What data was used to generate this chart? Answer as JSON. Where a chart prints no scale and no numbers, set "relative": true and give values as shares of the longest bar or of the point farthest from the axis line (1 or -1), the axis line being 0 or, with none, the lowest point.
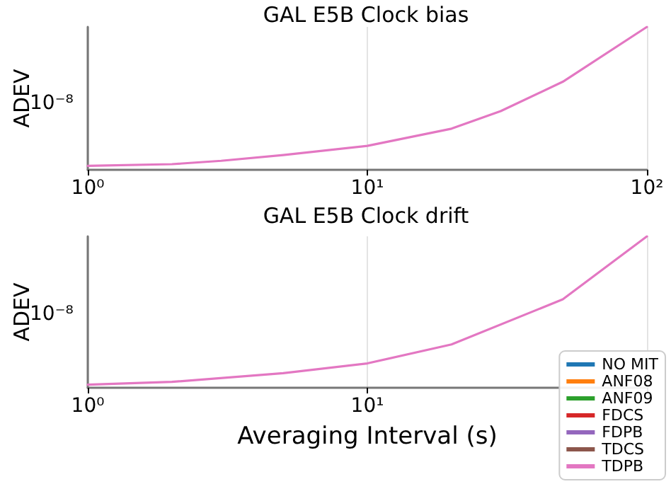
{
  "chart_data": [
    {
      "type": "line",
      "title": "GAL E5B Clock bias",
      "ylabel": "ADEV",
      "log": "x",
      "grid": "x",
      "legend": false,
      "relative": true,
      "annotations": [
        "10⁻⁸"
      ],
      "x": [
        1,
        2,
        3,
        5,
        10,
        20,
        30,
        50,
        100
      ],
      "xlim": [
        1,
        100
      ],
      "xticks": [
        {
          "value": 1,
          "label": "10⁰"
        },
        {
          "value": 10,
          "label": "10¹"
        },
        {
          "value": 100,
          "label": "10²"
        }
      ],
      "series": [
        {
          "color": "#e377c2",
          "values": [
            0.0274,
            0.0397,
            0.063,
            0.103,
            0.168,
            0.288,
            0.411,
            0.616,
            1
          ]
        }
      ]
    },
    {
      "type": "line",
      "title": "GAL E5B Clock drift",
      "xlabel": "Averaging Interval (s)",
      "ylabel": "ADEV",
      "log": "x",
      "grid": "x",
      "legend": "bottom right",
      "relative": true,
      "annotations": [
        "10⁻⁸"
      ],
      "x": [
        1,
        2,
        5,
        10,
        20,
        50,
        100
      ],
      "xlim": [
        1,
        100
      ],
      "xticks": [
        {
          "value": 1,
          "label": "10⁰"
        },
        {
          "value": 10,
          "label": "10¹"
        },
        {
          "value": 100,
          "label": null
        }
      ],
      "series": [
        {
          "name": "NO MIT",
          "color": "#1f77b4",
          "values": [
            null,
            null,
            null,
            null,
            null,
            null,
            null
          ]
        },
        {
          "name": "ANF08",
          "color": "#ff7f0e",
          "values": [
            null,
            null,
            null,
            null,
            null,
            null,
            null
          ]
        },
        {
          "name": "ANF09",
          "color": "#2ca02c",
          "values": [
            null,
            null,
            null,
            null,
            null,
            null,
            null
          ]
        },
        {
          "name": "FDCS",
          "color": "#d62728",
          "values": [
            null,
            null,
            null,
            null,
            null,
            null,
            null
          ]
        },
        {
          "name": "FDPB",
          "color": "#9467bd",
          "values": [
            null,
            null,
            null,
            null,
            null,
            null,
            null
          ]
        },
        {
          "name": "TDCS",
          "color": "#8c564b",
          "values": [
            null,
            null,
            null,
            null,
            null,
            null,
            null
          ]
        },
        {
          "name": "TDPB",
          "color": "#e377c2",
          "values": [
            0.0208,
            0.039,
            0.0961,
            0.161,
            0.286,
            0.584,
            1
          ]
        }
      ]
    }
  ]
}
